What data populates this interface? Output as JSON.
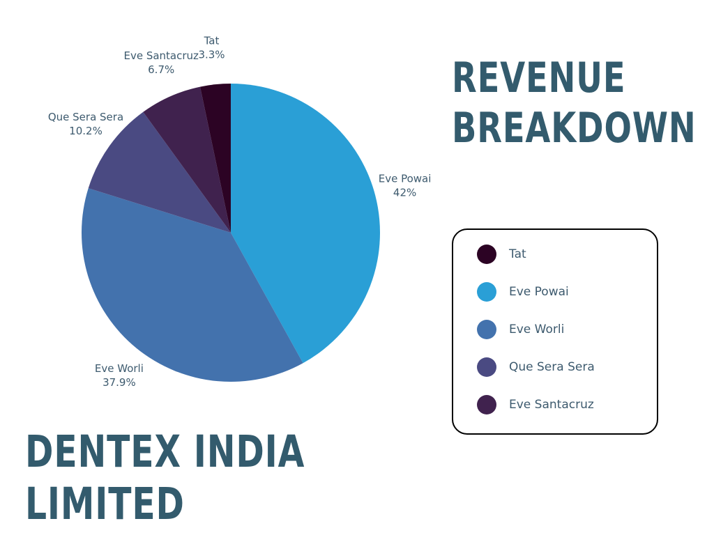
{
  "chart": {
    "title_line1": "Revenue",
    "title_line2": "Breakdown"
  },
  "company": {
    "line1": "Dentex India",
    "line2": "Limited"
  },
  "colors": {
    "heading": "#335b6d",
    "label_text": "#3d5a6e",
    "legend_border": "#000000"
  },
  "chart_data": {
    "type": "pie",
    "title": "Revenue Breakdown",
    "start": "12 o'clock",
    "direction": "clockwise",
    "slices": [
      {
        "label": "Eve Powai",
        "value": 42.0,
        "display": "42%",
        "color": "#2a9fd6"
      },
      {
        "label": "Eve Worli",
        "value": 37.9,
        "display": "37.9%",
        "color": "#4372ad"
      },
      {
        "label": "Que Sera Sera",
        "value": 10.2,
        "display": "10.2%",
        "color": "#4a4a82"
      },
      {
        "label": "Eve Santacruz",
        "value": 6.7,
        "display": "6.7%",
        "color": "#40224e"
      },
      {
        "label": "Tat",
        "value": 3.3,
        "display": "3.3%",
        "color": "#2c0324"
      }
    ],
    "legend": {
      "placement": "right",
      "items": [
        {
          "label": "Tat",
          "color": "#2c0324"
        },
        {
          "label": "Eve Powai",
          "color": "#2a9fd6"
        },
        {
          "label": "Eve Worli",
          "color": "#4372ad"
        },
        {
          "label": "Que Sera Sera",
          "color": "#4a4a82"
        },
        {
          "label": "Eve Santacruz",
          "color": "#40224e"
        }
      ]
    }
  }
}
